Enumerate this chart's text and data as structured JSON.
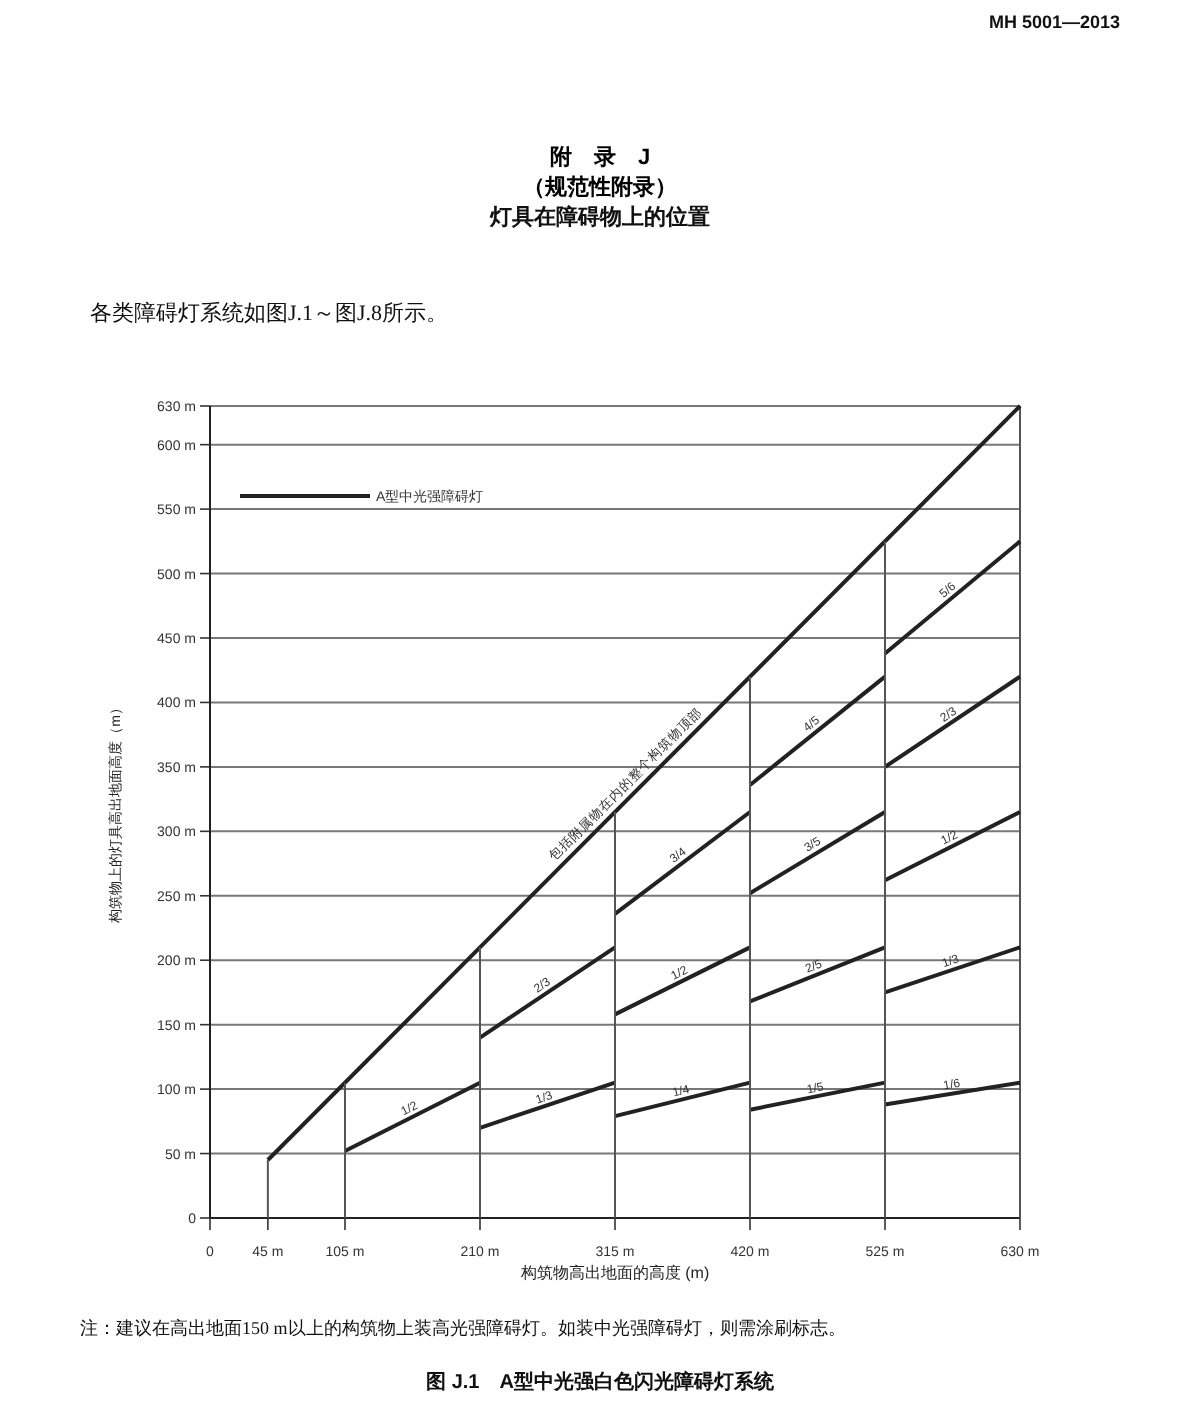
{
  "chart_data": {
    "type": "line",
    "title": "附　录　J",
    "subtitle": "（规范性附录）",
    "xlabel": "构筑物高出地面的高度 (m)",
    "ylabel": "构筑物上的灯具高出地面高度（m）",
    "xlim": [
      0,
      630
    ],
    "ylim": [
      0,
      630
    ],
    "xticks": [
      0,
      {
        "value": 45,
        "label": "45 m"
      },
      {
        "value": 105,
        "label": "105 m"
      },
      {
        "value": 210,
        "label": "210 m"
      },
      {
        "value": 315,
        "label": "315 m"
      },
      {
        "value": 420,
        "label": "420 m"
      },
      {
        "value": 525,
        "label": "525 m"
      },
      {
        "value": 630,
        "label": "630 m"
      }
    ],
    "yticks": [
      0,
      {
        "value": 50,
        "label": "50 m"
      },
      {
        "value": 100,
        "label": "100 m"
      },
      {
        "value": 150,
        "label": "150 m"
      },
      {
        "value": 200,
        "label": "200 m"
      },
      {
        "value": 250,
        "label": "250 m"
      },
      {
        "value": 300,
        "label": "300 m"
      },
      {
        "value": 350,
        "label": "350 m"
      },
      {
        "value": 400,
        "label": "400 m"
      },
      {
        "value": 450,
        "label": "450 m"
      },
      {
        "value": 500,
        "label": "500 m"
      },
      {
        "value": 550,
        "label": "550 m"
      },
      {
        "value": 600,
        "label": "600 m"
      },
      {
        "value": 630,
        "label": "630 m"
      }
    ],
    "grid": "y",
    "legend": "top left",
    "marker": "none",
    "line_style": "solid",
    "series": [
      {
        "name": "A型中光强障碍灯",
        "color": "#222222",
        "x": [
          45,
          630
        ],
        "values": [
          45,
          630
        ]
      },
      {
        "color": "#222222",
        "x": [
          105,
          210
        ],
        "values": [
          52,
          105
        ]
      },
      {
        "color": "#222222",
        "x": [
          210,
          315
        ],
        "values": [
          140,
          210
        ]
      },
      {
        "color": "#222222",
        "x": [
          210,
          315
        ],
        "values": [
          70,
          105
        ]
      },
      {
        "color": "#222222",
        "x": [
          315,
          420
        ],
        "values": [
          236,
          315
        ]
      },
      {
        "color": "#222222",
        "x": [
          315,
          420
        ],
        "values": [
          158,
          210
        ]
      },
      {
        "color": "#222222",
        "x": [
          315,
          420
        ],
        "values": [
          79,
          105
        ]
      },
      {
        "color": "#222222",
        "x": [
          420,
          525
        ],
        "values": [
          336,
          420
        ]
      },
      {
        "color": "#222222",
        "x": [
          420,
          525
        ],
        "values": [
          252,
          315
        ]
      },
      {
        "color": "#222222",
        "x": [
          420,
          525
        ],
        "values": [
          168,
          210
        ]
      },
      {
        "color": "#222222",
        "x": [
          420,
          525
        ],
        "values": [
          84,
          105
        ]
      },
      {
        "color": "#222222",
        "x": [
          525,
          630
        ],
        "values": [
          438,
          525
        ]
      },
      {
        "color": "#222222",
        "x": [
          525,
          630
        ],
        "values": [
          350,
          420
        ]
      },
      {
        "color": "#222222",
        "x": [
          525,
          630
        ],
        "values": [
          262,
          315
        ]
      },
      {
        "color": "#222222",
        "x": [
          525,
          630
        ],
        "values": [
          175,
          210
        ]
      },
      {
        "color": "#222222",
        "x": [
          525,
          630
        ],
        "values": [
          88,
          105
        ]
      },
      {
        "color": "#555555",
        "x": [
          45,
          45
        ],
        "values": [
          0,
          45
        ]
      },
      {
        "color": "#555555",
        "x": [
          105,
          105
        ],
        "values": [
          0,
          105
        ]
      },
      {
        "color": "#555555",
        "x": [
          210,
          210
        ],
        "values": [
          0,
          210
        ]
      },
      {
        "color": "#555555",
        "x": [
          315,
          315
        ],
        "values": [
          0,
          315
        ]
      },
      {
        "color": "#555555",
        "x": [
          420,
          420
        ],
        "values": [
          0,
          420
        ]
      },
      {
        "color": "#555555",
        "x": [
          525,
          525
        ],
        "values": [
          0,
          525
        ]
      }
    ],
    "annotations": [
      "MH 5001—2013",
      "灯具在障碍物上的位置",
      "各类障碍灯系统如图J.1～图J.8所示。",
      "注：建议在高出地面150 m以上的构筑物上装高光强障碍灯。如装中光强障碍灯，则需涂刷标志。",
      "图 J.1　A型中光强白色闪光障碍灯系统",
      {
        "text": "包括附属物在内的整个构筑物顶部",
        "x": 330,
        "y": 330
      },
      {
        "text": "1/2",
        "x": 158,
        "y": 79
      },
      {
        "text": "2/3",
        "x": 262,
        "y": 175
      },
      {
        "text": "1/3",
        "x": 262,
        "y": 87
      },
      {
        "text": "3/4",
        "x": 368,
        "y": 276
      },
      {
        "text": "1/2",
        "x": 368,
        "y": 184
      },
      {
        "text": "1/4",
        "x": 368,
        "y": 92
      },
      {
        "text": "4/5",
        "x": 472,
        "y": 378
      },
      {
        "text": "3/5",
        "x": 472,
        "y": 284
      },
      {
        "text": "2/5",
        "x": 472,
        "y": 189
      },
      {
        "text": "1/5",
        "x": 472,
        "y": 94
      },
      {
        "text": "5/6",
        "x": 578,
        "y": 482
      },
      {
        "text": "2/3",
        "x": 578,
        "y": 385
      },
      {
        "text": "1/2",
        "x": 578,
        "y": 289
      },
      {
        "text": "1/3",
        "x": 578,
        "y": 193
      },
      {
        "text": "1/6",
        "x": 578,
        "y": 97
      }
    ]
  }
}
